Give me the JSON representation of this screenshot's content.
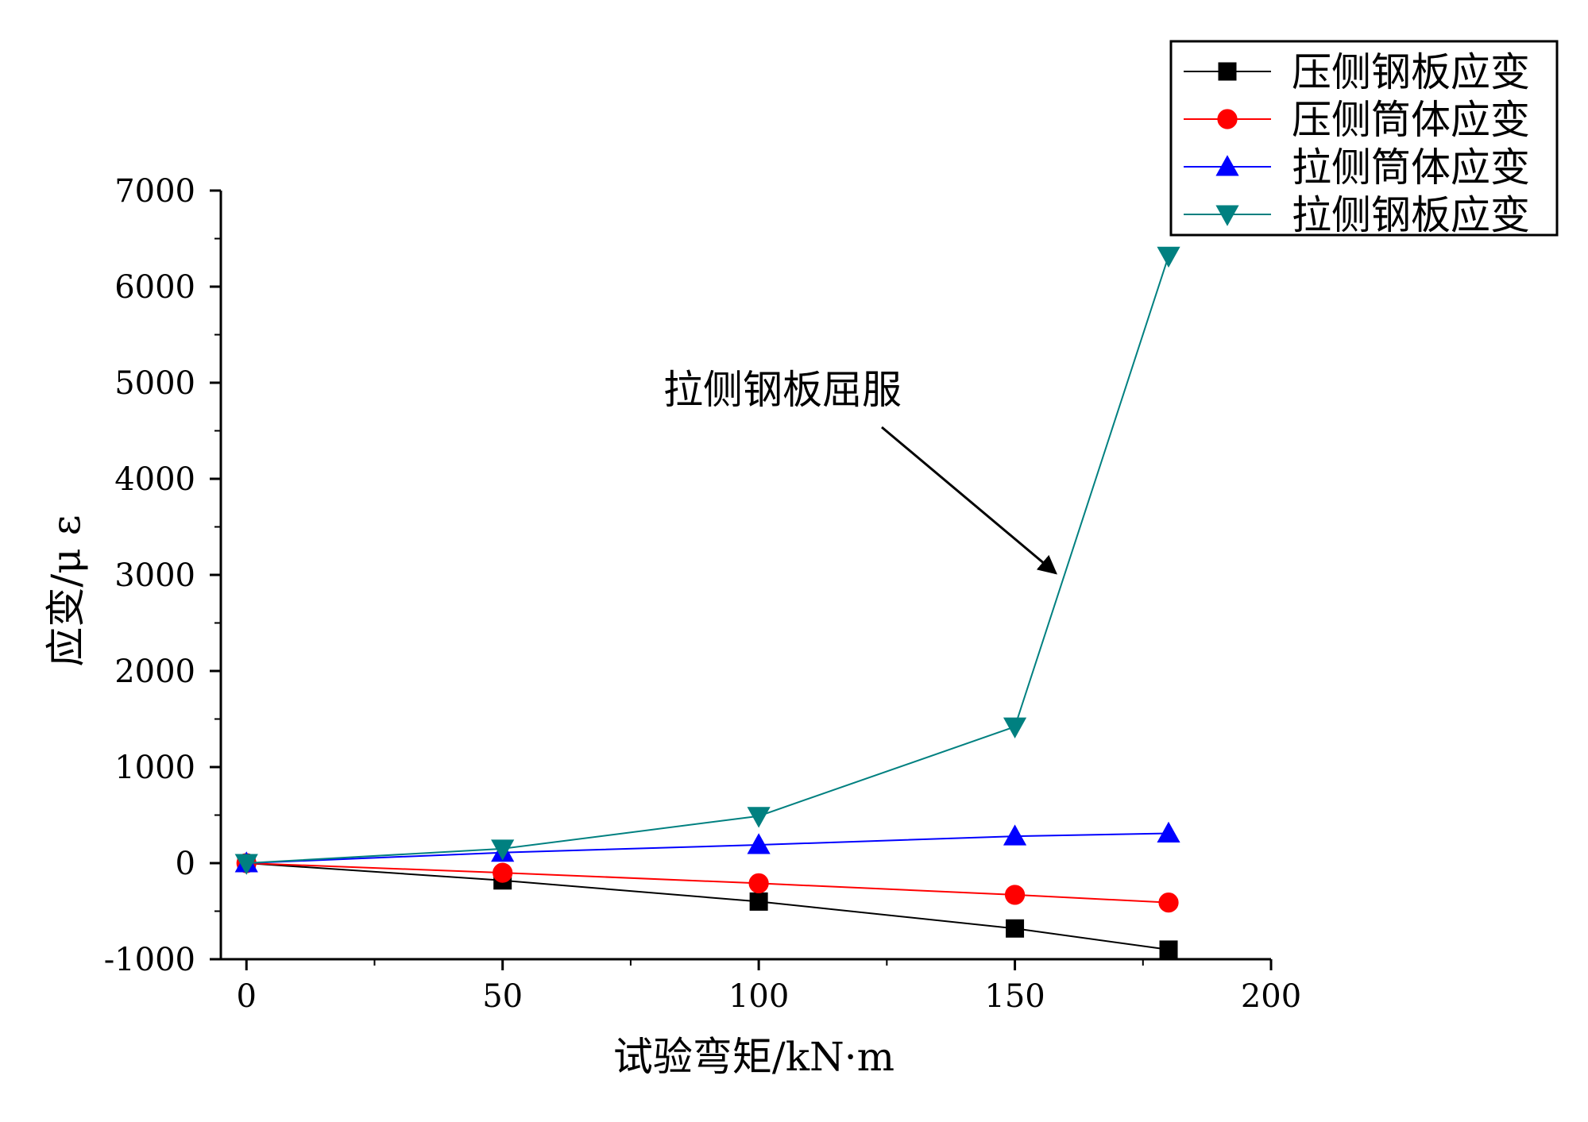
{
  "chart_data": {
    "type": "line",
    "xlabel": "试验弯矩/kN·m",
    "ylabel": "应变/μ ε",
    "xlim": [
      -5,
      200
    ],
    "ylim": [
      -1000,
      7000
    ],
    "x_ticks": [
      0,
      50,
      100,
      150,
      200
    ],
    "y_ticks": [
      -1000,
      0,
      1000,
      2000,
      3000,
      4000,
      5000,
      6000,
      7000
    ],
    "x_tick_labels": [
      "0",
      "50",
      "100",
      "150",
      "200"
    ],
    "y_tick_labels": [
      "-1000",
      "0",
      "1000",
      "2000",
      "3000",
      "4000",
      "5000",
      "6000",
      "7000"
    ],
    "grid": false,
    "legend_position": "top-right",
    "x": [
      0,
      50,
      100,
      150,
      180
    ],
    "series": [
      {
        "name": "压侧钢板应变",
        "color": "#000000",
        "marker": "square",
        "values": [
          0,
          -180,
          -400,
          -680,
          -900
        ]
      },
      {
        "name": "压侧筒体应变",
        "color": "#ff0000",
        "marker": "circle",
        "values": [
          0,
          -100,
          -210,
          -330,
          -410
        ]
      },
      {
        "name": "拉侧筒体应变",
        "color": "#0000ff",
        "marker": "triangle-up",
        "values": [
          0,
          110,
          190,
          280,
          310
        ]
      },
      {
        "name": "拉侧钢板应变",
        "color": "#008080",
        "marker": "triangle-down",
        "values": [
          0,
          150,
          490,
          1420,
          6320
        ]
      }
    ],
    "annotation": {
      "text": "拉侧钢板屈服",
      "points_to": {
        "x": 158,
        "y": 3000
      }
    }
  }
}
